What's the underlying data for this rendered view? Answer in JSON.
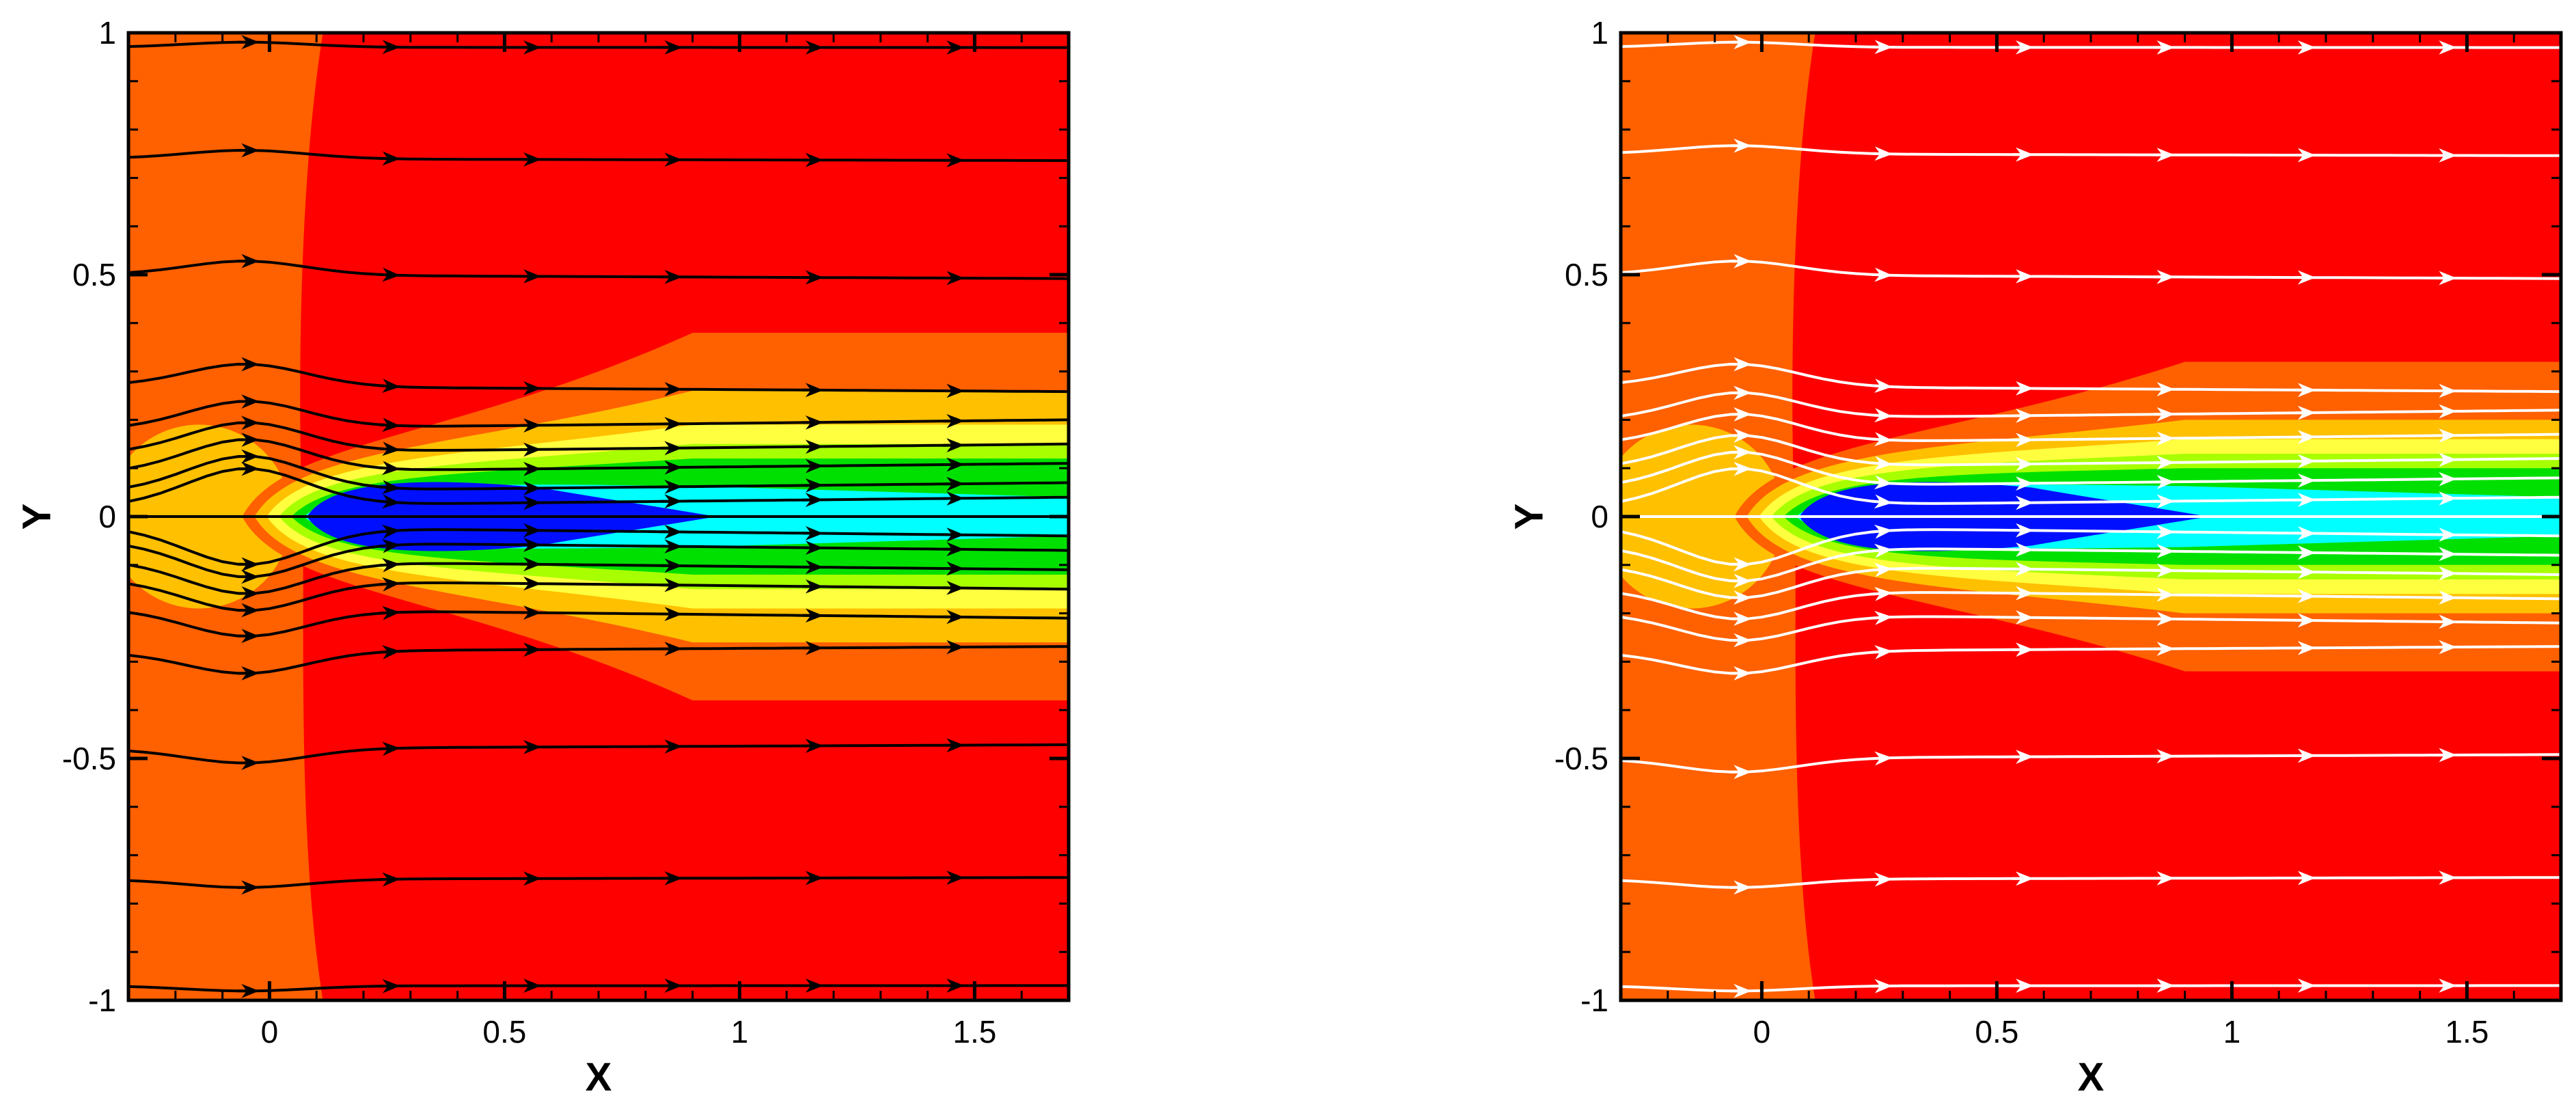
{
  "colors": {
    "c_red": "#ff0000",
    "c_orange": "#ff6000",
    "c_yellow": "#ffc000",
    "c_lightyellow": "#ffff40",
    "c_yellowgreen": "#a8ff00",
    "c_green": "#00e000",
    "c_cyan": "#00ffff",
    "c_deepblue": "#0010ff",
    "c_axis": "#000000"
  },
  "chart_data": [
    {
      "type": "contour",
      "xlabel": "X",
      "ylabel": "Y",
      "xlim": [
        -0.3,
        1.7
      ],
      "ylim": [
        -1,
        1
      ],
      "x_ticks": [
        0,
        0.5,
        1,
        1.5
      ],
      "x_tick_labels": [
        "0",
        "0.5",
        "1",
        "1.5"
      ],
      "y_ticks": [
        -1,
        -0.5,
        0,
        0.5,
        1
      ],
      "y_tick_labels": [
        "-1",
        "-0.5",
        "0",
        "0.5",
        "1"
      ],
      "streamline_color": "black",
      "streamline_y_starts": [
        0.97,
        0.74,
        0.5,
        0.27,
        0.18,
        0.13,
        0.09,
        0.05,
        0.02,
        -0.02,
        -0.05,
        -0.09,
        -0.13,
        -0.19,
        -0.28,
        -0.48,
        -0.75,
        -0.97
      ],
      "wake_regions": [
        {
          "color": "c_orange",
          "x_end": 1.7,
          "half_width_end": 0.38
        },
        {
          "color": "c_yellow",
          "x_end": 1.7,
          "half_width_end": 0.26
        },
        {
          "color": "c_lightyellow",
          "x_end": 1.7,
          "half_width_end": 0.19
        },
        {
          "color": "c_yellowgreen",
          "x_end": 1.7,
          "half_width_end": 0.15
        },
        {
          "color": "c_green",
          "x_end": 1.7,
          "half_width_end": 0.12
        },
        {
          "color": "c_cyan",
          "x_end": 1.7,
          "half_width_end": 0.04
        },
        {
          "color": "c_deepblue",
          "x_end": 0.95,
          "half_width_end": 0.0
        }
      ]
    },
    {
      "type": "contour",
      "xlabel": "X",
      "ylabel": "Y",
      "xlim": [
        -0.3,
        1.7
      ],
      "ylim": [
        -1,
        1
      ],
      "x_ticks": [
        0,
        0.5,
        1,
        1.5
      ],
      "x_tick_labels": [
        "0",
        "0.5",
        "1",
        "1.5"
      ],
      "y_ticks": [
        -1,
        -0.5,
        0,
        0.5,
        1
      ],
      "y_tick_labels": [
        "-1",
        "-0.5",
        "0",
        "0.5",
        "1"
      ],
      "streamline_color": "white",
      "streamline_y_starts": [
        0.97,
        0.75,
        0.5,
        0.27,
        0.2,
        0.15,
        0.1,
        0.06,
        0.02,
        -0.02,
        -0.06,
        -0.1,
        -0.15,
        -0.2,
        -0.28,
        -0.5,
        -0.75,
        -0.97
      ],
      "wake_regions": [
        {
          "color": "c_orange",
          "x_end": 1.7,
          "half_width_end": 0.32
        },
        {
          "color": "c_yellow",
          "x_end": 1.7,
          "half_width_end": 0.2
        },
        {
          "color": "c_lightyellow",
          "x_end": 1.7,
          "half_width_end": 0.16
        },
        {
          "color": "c_yellowgreen",
          "x_end": 1.7,
          "half_width_end": 0.13
        },
        {
          "color": "c_green",
          "x_end": 1.7,
          "half_width_end": 0.1
        },
        {
          "color": "c_cyan",
          "x_end": 1.7,
          "half_width_end": 0.04
        },
        {
          "color": "c_deepblue",
          "x_end": 0.95,
          "half_width_end": 0.0
        }
      ]
    }
  ]
}
